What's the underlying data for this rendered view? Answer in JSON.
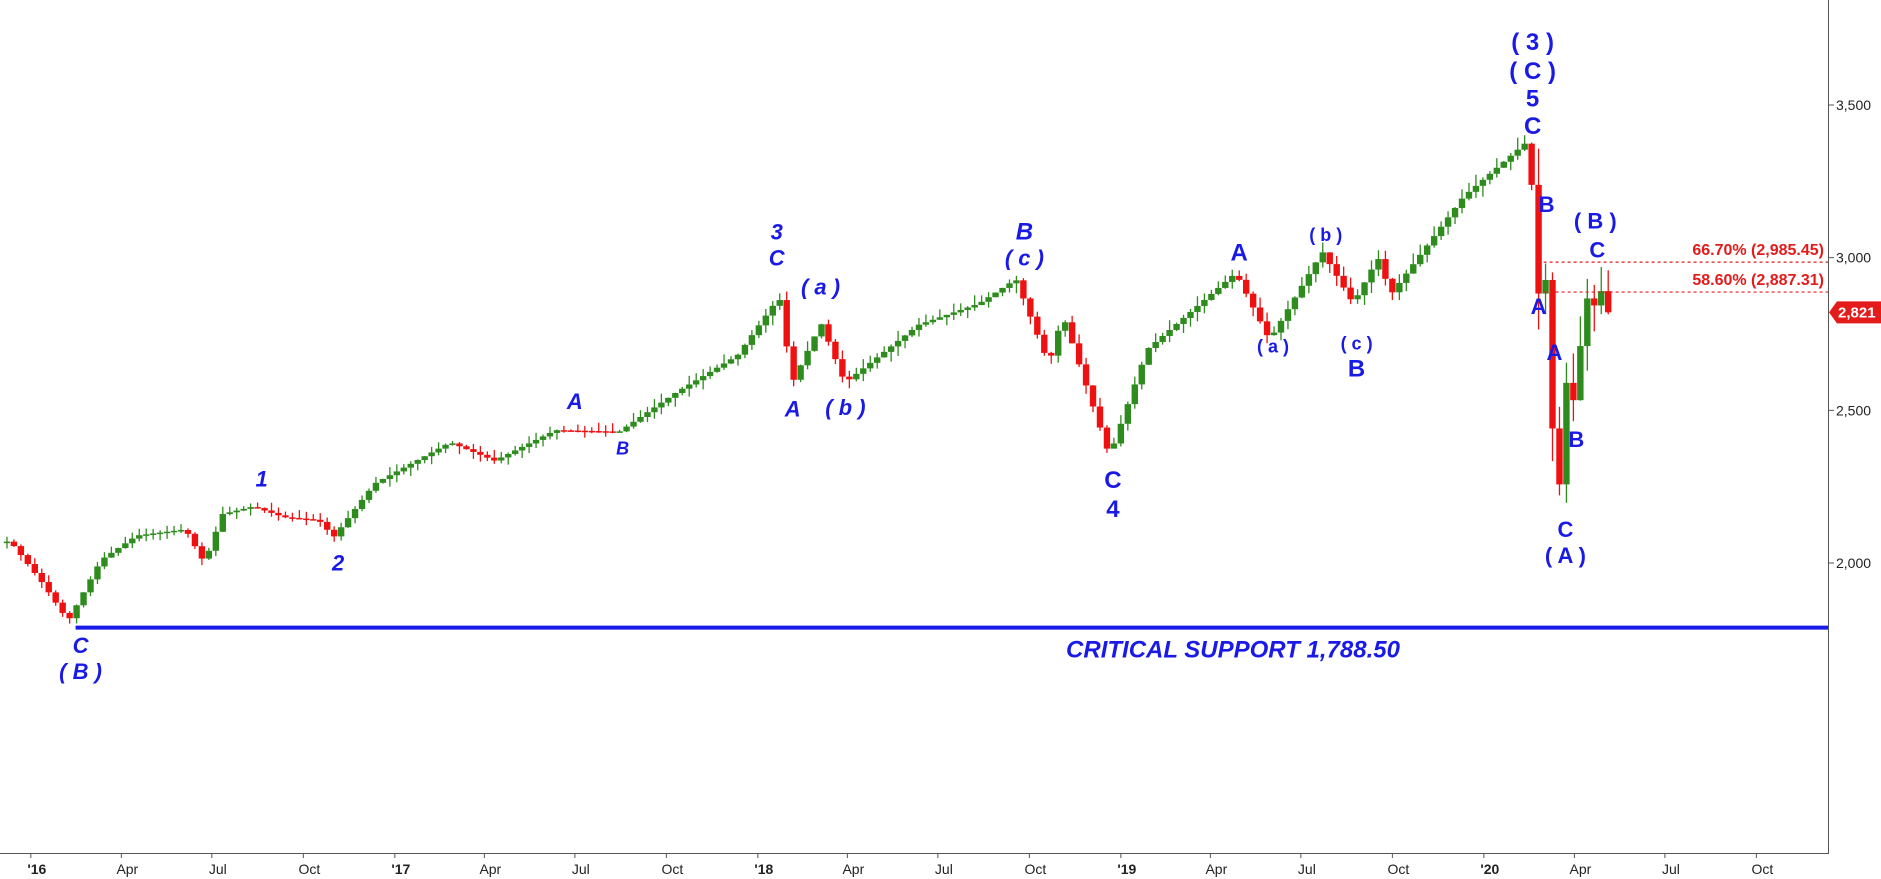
{
  "colors": {
    "up": "#2e8b1e",
    "down": "#ee1111",
    "wave": "#1a1ae6",
    "support": "#1a1ae6",
    "fib": "#e31b1b",
    "axis": "#555555"
  },
  "chart_data": {
    "type": "candlestick",
    "timeframe": "weekly",
    "x_range": [
      "2015-12",
      "2020-12"
    ],
    "ylim": [
      1650,
      3800
    ],
    "y_ticks": [
      "3,500",
      "3,000",
      "2,500",
      "2,000"
    ],
    "x_ticks": [
      "'16",
      "Apr",
      "Jul",
      "Oct",
      "'17",
      "Apr",
      "Jul",
      "Oct",
      "'18",
      "Apr",
      "Jul",
      "Oct",
      "'19",
      "Apr",
      "Jul",
      "Oct",
      "'20",
      "Apr",
      "Jul",
      "Oct"
    ],
    "last_price": 2821,
    "last_price_label": "2,821",
    "support": {
      "value": 1788.5,
      "label": "CRITICAL SUPPORT 1,788.50"
    },
    "fib_levels": [
      {
        "value": 2985.45,
        "label": "66.70% (2,985.45)"
      },
      {
        "value": 2887.31,
        "label": "58.60% (2,887.31)"
      }
    ],
    "price_path": [
      [
        "2015-12-15",
        2070
      ],
      [
        "2016-01-15",
        1940
      ],
      [
        "2016-02-11",
        1810
      ],
      [
        "2016-03-15",
        2010
      ],
      [
        "2016-04-20",
        2090
      ],
      [
        "2016-06-08",
        2110
      ],
      [
        "2016-06-27",
        2000
      ],
      [
        "2016-07-15",
        2160
      ],
      [
        "2016-08-15",
        2185
      ],
      [
        "2016-09-15",
        2150
      ],
      [
        "2016-10-20",
        2140
      ],
      [
        "2016-11-04",
        2085
      ],
      [
        "2016-12-15",
        2260
      ],
      [
        "2017-03-01",
        2395
      ],
      [
        "2017-04-15",
        2335
      ],
      [
        "2017-06-15",
        2435
      ],
      [
        "2017-08-18",
        2430
      ],
      [
        "2017-10-15",
        2560
      ],
      [
        "2017-12-15",
        2680
      ],
      [
        "2018-01-26",
        2872
      ],
      [
        "2018-02-08",
        2590
      ],
      [
        "2018-03-09",
        2786
      ],
      [
        "2018-04-02",
        2590
      ],
      [
        "2018-06-15",
        2780
      ],
      [
        "2018-08-15",
        2850
      ],
      [
        "2018-09-21",
        2930
      ],
      [
        "2018-10-24",
        2650
      ],
      [
        "2018-11-07",
        2813
      ],
      [
        "2018-12-24",
        2350
      ],
      [
        "2019-01-31",
        2700
      ],
      [
        "2019-04-30",
        2950
      ],
      [
        "2019-06-03",
        2730
      ],
      [
        "2019-07-26",
        3020
      ],
      [
        "2019-08-26",
        2850
      ],
      [
        "2019-09-20",
        3000
      ],
      [
        "2019-10-03",
        2880
      ],
      [
        "2019-12-15",
        3200
      ],
      [
        "2020-02-19",
        3386
      ],
      [
        "2020-02-28",
        2855
      ],
      [
        "2020-03-04",
        3130
      ],
      [
        "2020-03-12",
        2480
      ],
      [
        "2020-03-23",
        2192
      ],
      [
        "2020-03-26",
        2630
      ],
      [
        "2020-04-01",
        2470
      ],
      [
        "2020-04-17",
        2875
      ],
      [
        "2020-04-22",
        2790
      ],
      [
        "2020-04-29",
        2940
      ],
      [
        "2020-05-05",
        2821
      ]
    ]
  },
  "labels": [
    {
      "text": "C",
      "date": "2016-02-20",
      "price": 1705,
      "style": "italic",
      "size": 22
    },
    {
      "text": "( B )",
      "date": "2016-02-20",
      "price": 1620,
      "style": "italic",
      "size": 22
    },
    {
      "text": "1",
      "date": "2016-08-20",
      "price": 2250,
      "style": "italic",
      "size": 22
    },
    {
      "text": "2",
      "date": "2016-11-05",
      "price": 1975,
      "style": "italic",
      "size": 22
    },
    {
      "text": "A",
      "date": "2017-07-01",
      "price": 2505,
      "style": "italic",
      "size": 22
    },
    {
      "text": "B",
      "date": "2017-08-18",
      "price": 2355,
      "style": "italic",
      "size": 18
    },
    {
      "text": "3",
      "date": "2018-01-20",
      "price": 3060,
      "style": "italic",
      "size": 22
    },
    {
      "text": "C",
      "date": "2018-01-20",
      "price": 2975,
      "style": "italic",
      "size": 22
    },
    {
      "text": "( a )",
      "date": "2018-03-05",
      "price": 2880,
      "style": "italic",
      "size": 22
    },
    {
      "text": "A",
      "date": "2018-02-05",
      "price": 2480,
      "style": "italic",
      "size": 22
    },
    {
      "text": "( b )",
      "date": "2018-03-30",
      "price": 2485,
      "style": "italic",
      "size": 22
    },
    {
      "text": "B",
      "date": "2018-09-26",
      "price": 3060,
      "style": "italic",
      "size": 24
    },
    {
      "text": "( c )",
      "date": "2018-09-26",
      "price": 2975,
      "style": "italic",
      "size": 22
    },
    {
      "text": "C",
      "date": "2018-12-24",
      "price": 2245,
      "style": "normal",
      "size": 24
    },
    {
      "text": "4",
      "date": "2018-12-24",
      "price": 2150,
      "style": "normal",
      "size": 24
    },
    {
      "text": "A",
      "date": "2019-04-30",
      "price": 2990,
      "style": "normal",
      "size": 24
    },
    {
      "text": "( b )",
      "date": "2019-07-26",
      "price": 3055,
      "style": "normal",
      "size": 18
    },
    {
      "text": "( a )",
      "date": "2019-06-03",
      "price": 2690,
      "style": "normal",
      "size": 18
    },
    {
      "text": "( c )",
      "date": "2019-08-26",
      "price": 2700,
      "style": "normal",
      "size": 18
    },
    {
      "text": "B",
      "date": "2019-08-26",
      "price": 2610,
      "style": "normal",
      "size": 24
    },
    {
      "text": "( 3 )",
      "date": "2020-02-19",
      "price": 3680,
      "style": "normal",
      "size": 24
    },
    {
      "text": "( C )",
      "date": "2020-02-19",
      "price": 3585,
      "style": "normal",
      "size": 24
    },
    {
      "text": "5",
      "date": "2020-02-19",
      "price": 3495,
      "style": "normal",
      "size": 24
    },
    {
      "text": "C",
      "date": "2020-02-19",
      "price": 3405,
      "style": "normal",
      "size": 24
    },
    {
      "text": "B",
      "date": "2020-03-04",
      "price": 3150,
      "style": "normal",
      "size": 22
    },
    {
      "text": "A",
      "date": "2020-02-25",
      "price": 2815,
      "style": "normal",
      "size": 22
    },
    {
      "text": "( B )",
      "date": "2020-04-22",
      "price": 3095,
      "style": "normal",
      "size": 22
    },
    {
      "text": "C",
      "date": "2020-04-24",
      "price": 3000,
      "style": "normal",
      "size": 22
    },
    {
      "text": "A",
      "date": "2020-03-12",
      "price": 2665,
      "style": "normal",
      "size": 22
    },
    {
      "text": "B",
      "date": "2020-04-03",
      "price": 2380,
      "style": "normal",
      "size": 22
    },
    {
      "text": "C",
      "date": "2020-03-23",
      "price": 2085,
      "style": "normal",
      "size": 22
    },
    {
      "text": "( A )",
      "date": "2020-03-23",
      "price": 2000,
      "style": "normal",
      "size": 22
    }
  ]
}
